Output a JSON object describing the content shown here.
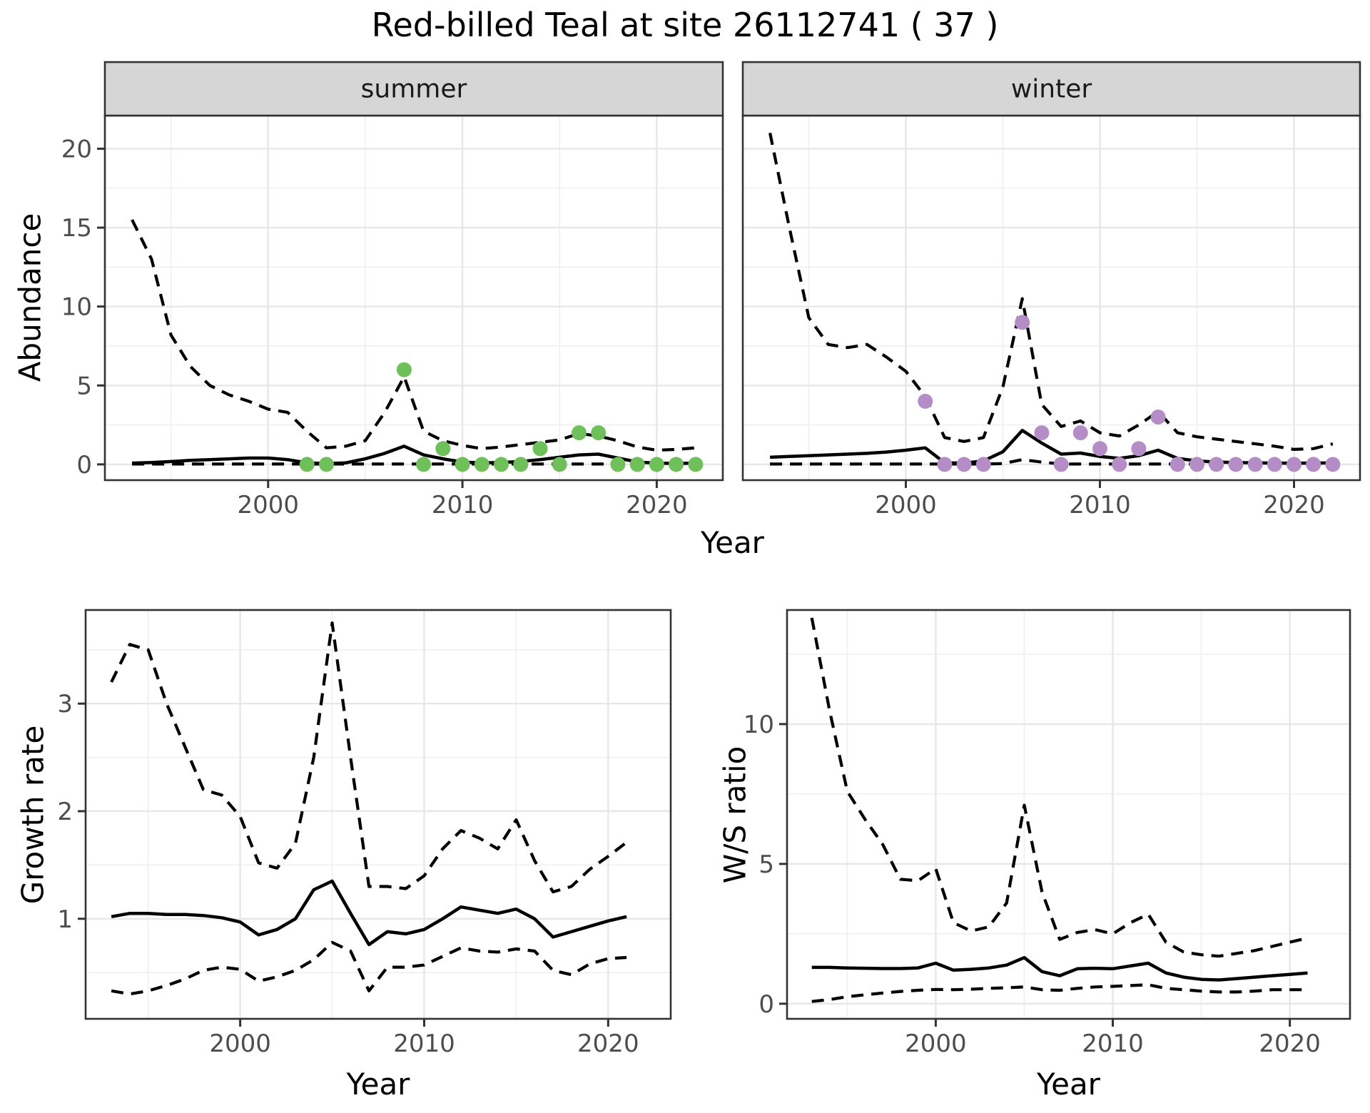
{
  "title": "Red-billed Teal at site 26112741 ( 37 )",
  "shared": {
    "xlabel": "Year",
    "x_domain": [
      1991.6,
      2023.4
    ],
    "x_ticks": [
      2000,
      2010,
      2020
    ],
    "x_minor": [
      1995,
      2005,
      2015
    ]
  },
  "colors": {
    "summer_point": "#6FBF5A",
    "winter_point": "#B48DC6",
    "line": "#000000",
    "grid_major": "#E7E7E7",
    "grid_minor": "#EFEFEF",
    "panel_border": "#333333",
    "strip_bg": "#D6D6D6",
    "strip_text": "#1A1A1A",
    "tick_text": "#4D4D4D",
    "tick_mark": "#333333"
  },
  "chart_data": [
    {
      "id": "summer",
      "type": "line+scatter",
      "facet_label": "summer",
      "ylabel": "Abundance",
      "xlabel": "Year",
      "y_domain": [
        -1.0,
        22.1
      ],
      "y_ticks": [
        0,
        5,
        10,
        15,
        20
      ],
      "y_minor": [
        2.5,
        7.5,
        12.5,
        17.5
      ],
      "show_y_labels": true,
      "x": [
        1993,
        1994,
        1995,
        1996,
        1997,
        1998,
        1999,
        2000,
        2001,
        2002,
        2003,
        2004,
        2005,
        2006,
        2007,
        2008,
        2009,
        2010,
        2011,
        2012,
        2013,
        2014,
        2015,
        2016,
        2017,
        2018,
        2019,
        2020,
        2021,
        2022
      ],
      "series": [
        {
          "name": "mean",
          "style": "solid",
          "values": [
            0.08,
            0.12,
            0.18,
            0.25,
            0.3,
            0.35,
            0.4,
            0.4,
            0.3,
            0.1,
            0.05,
            0.1,
            0.35,
            0.7,
            1.15,
            0.6,
            0.35,
            0.15,
            0.1,
            0.12,
            0.18,
            0.3,
            0.45,
            0.6,
            0.65,
            0.4,
            0.15,
            0.08,
            0.06,
            0.08
          ]
        },
        {
          "name": "upper_ci",
          "style": "dashed",
          "values": [
            15.5,
            13.0,
            8.2,
            6.2,
            5.0,
            4.4,
            4.0,
            3.5,
            3.3,
            2.1,
            1.05,
            1.15,
            1.5,
            3.3,
            5.55,
            2.1,
            1.5,
            1.2,
            1.0,
            1.1,
            1.25,
            1.4,
            1.55,
            1.95,
            1.8,
            1.5,
            1.1,
            0.9,
            0.95,
            1.05
          ]
        },
        {
          "name": "lower_ci",
          "style": "dashed",
          "values": [
            0.02,
            0.02,
            0.02,
            0.02,
            0.02,
            0.02,
            0.02,
            0.02,
            0.02,
            0.02,
            0.02,
            0.02,
            0.02,
            0.02,
            0.02,
            0.02,
            0.02,
            0.02,
            0.02,
            0.02,
            0.02,
            0.02,
            0.02,
            0.02,
            0.02,
            0.02,
            0.02,
            0.02,
            0.02,
            0.02
          ]
        }
      ],
      "points": {
        "color_key": "summer_point",
        "data": [
          [
            2002,
            0
          ],
          [
            2003,
            0
          ],
          [
            2007,
            6
          ],
          [
            2008,
            0
          ],
          [
            2009,
            1
          ],
          [
            2010,
            0
          ],
          [
            2011,
            0
          ],
          [
            2012,
            0
          ],
          [
            2013,
            0
          ],
          [
            2014,
            1
          ],
          [
            2015,
            0
          ],
          [
            2016,
            2
          ],
          [
            2017,
            2
          ],
          [
            2018,
            0
          ],
          [
            2019,
            0
          ],
          [
            2020,
            0
          ],
          [
            2021,
            0
          ],
          [
            2022,
            0
          ]
        ]
      }
    },
    {
      "id": "winter",
      "type": "line+scatter",
      "facet_label": "winter",
      "ylabel": "Abundance",
      "xlabel": "Year",
      "y_domain": [
        -1.0,
        22.1
      ],
      "y_ticks": [
        0,
        5,
        10,
        15,
        20
      ],
      "y_minor": [
        2.5,
        7.5,
        12.5,
        17.5
      ],
      "show_y_labels": false,
      "x": [
        1993,
        1994,
        1995,
        1996,
        1997,
        1998,
        1999,
        2000,
        2001,
        2002,
        2003,
        2004,
        2005,
        2006,
        2007,
        2008,
        2009,
        2010,
        2011,
        2012,
        2013,
        2014,
        2015,
        2016,
        2017,
        2018,
        2019,
        2020,
        2021,
        2022
      ],
      "series": [
        {
          "name": "mean",
          "style": "solid",
          "values": [
            0.45,
            0.5,
            0.55,
            0.6,
            0.65,
            0.7,
            0.78,
            0.9,
            1.05,
            0.1,
            0.08,
            0.22,
            0.8,
            2.15,
            1.35,
            0.65,
            0.72,
            0.5,
            0.38,
            0.55,
            0.9,
            0.38,
            0.22,
            0.15,
            0.12,
            0.1,
            0.08,
            0.08,
            0.08,
            0.1
          ]
        },
        {
          "name": "upper_ci",
          "style": "dashed",
          "values": [
            21.0,
            15.0,
            9.3,
            7.6,
            7.4,
            7.6,
            6.8,
            5.9,
            4.3,
            1.7,
            1.45,
            1.7,
            4.9,
            10.5,
            3.8,
            2.4,
            2.75,
            2.0,
            1.8,
            2.5,
            3.35,
            2.0,
            1.75,
            1.6,
            1.45,
            1.3,
            1.15,
            0.95,
            1.0,
            1.3
          ]
        },
        {
          "name": "lower_ci",
          "style": "dashed",
          "values": [
            0.02,
            0.02,
            0.02,
            0.02,
            0.02,
            0.02,
            0.02,
            0.02,
            0.02,
            0.02,
            0.02,
            0.02,
            0.05,
            0.3,
            0.15,
            0.02,
            0.02,
            0.02,
            0.02,
            0.02,
            0.02,
            0.02,
            0.02,
            0.02,
            0.02,
            0.02,
            0.02,
            0.02,
            0.02,
            0.02
          ]
        }
      ],
      "points": {
        "color_key": "winter_point",
        "data": [
          [
            2001,
            4
          ],
          [
            2002,
            0
          ],
          [
            2003,
            0
          ],
          [
            2004,
            0
          ],
          [
            2006,
            9
          ],
          [
            2007,
            2
          ],
          [
            2008,
            0
          ],
          [
            2009,
            2
          ],
          [
            2010,
            1
          ],
          [
            2011,
            0
          ],
          [
            2012,
            1
          ],
          [
            2013,
            3
          ],
          [
            2014,
            0
          ],
          [
            2015,
            0
          ],
          [
            2016,
            0
          ],
          [
            2017,
            0
          ],
          [
            2018,
            0
          ],
          [
            2019,
            0
          ],
          [
            2020,
            0
          ],
          [
            2021,
            0
          ],
          [
            2022,
            0
          ]
        ]
      }
    },
    {
      "id": "growth_rate",
      "type": "line",
      "facet_label": null,
      "ylabel": "Growth rate",
      "xlabel": "Year",
      "y_domain": [
        0.07,
        3.87
      ],
      "y_ticks": [
        1,
        2,
        3
      ],
      "y_minor": [
        0.5,
        1.5,
        2.5,
        3.5
      ],
      "show_y_labels": true,
      "x": [
        1993,
        1994,
        1995,
        1996,
        1997,
        1998,
        1999,
        2000,
        2001,
        2002,
        2003,
        2004,
        2005,
        2006,
        2007,
        2008,
        2009,
        2010,
        2011,
        2012,
        2013,
        2014,
        2015,
        2016,
        2017,
        2018,
        2019,
        2020,
        2021
      ],
      "series": [
        {
          "name": "mean",
          "style": "solid",
          "values": [
            1.02,
            1.05,
            1.05,
            1.04,
            1.04,
            1.03,
            1.01,
            0.97,
            0.85,
            0.9,
            1.0,
            1.27,
            1.35,
            1.05,
            0.76,
            0.88,
            0.86,
            0.9,
            1.0,
            1.11,
            1.08,
            1.05,
            1.09,
            1.0,
            0.83,
            0.88,
            0.93,
            0.98,
            1.02
          ]
        },
        {
          "name": "upper_ci",
          "style": "dashed",
          "values": [
            3.2,
            3.55,
            3.5,
            3.0,
            2.6,
            2.2,
            2.15,
            1.95,
            1.52,
            1.47,
            1.7,
            2.5,
            3.75,
            2.5,
            1.3,
            1.3,
            1.28,
            1.4,
            1.65,
            1.82,
            1.75,
            1.65,
            1.92,
            1.54,
            1.25,
            1.3,
            1.46,
            1.58,
            1.71
          ]
        },
        {
          "name": "lower_ci",
          "style": "dashed",
          "values": [
            0.33,
            0.3,
            0.33,
            0.38,
            0.44,
            0.52,
            0.55,
            0.53,
            0.42,
            0.46,
            0.52,
            0.62,
            0.78,
            0.7,
            0.33,
            0.55,
            0.55,
            0.57,
            0.65,
            0.73,
            0.7,
            0.69,
            0.72,
            0.7,
            0.52,
            0.48,
            0.58,
            0.63,
            0.64
          ]
        }
      ],
      "points": null
    },
    {
      "id": "ws_ratio",
      "type": "line",
      "facet_label": null,
      "ylabel": "W/S ratio",
      "xlabel": "Year",
      "y_domain": [
        -0.54,
        14.08
      ],
      "y_ticks": [
        0,
        5,
        10
      ],
      "y_minor": [
        2.5,
        7.5,
        12.5
      ],
      "show_y_labels": true,
      "x": [
        1993,
        1994,
        1995,
        1996,
        1997,
        1998,
        1999,
        2000,
        2001,
        2002,
        2003,
        2004,
        2005,
        2006,
        2007,
        2008,
        2009,
        2010,
        2011,
        2012,
        2013,
        2014,
        2015,
        2016,
        2017,
        2018,
        2019,
        2020,
        2021
      ],
      "series": [
        {
          "name": "mean",
          "style": "solid",
          "values": [
            1.3,
            1.3,
            1.28,
            1.27,
            1.26,
            1.26,
            1.28,
            1.45,
            1.2,
            1.23,
            1.28,
            1.38,
            1.65,
            1.15,
            1.0,
            1.25,
            1.27,
            1.25,
            1.35,
            1.45,
            1.1,
            0.95,
            0.87,
            0.85,
            0.9,
            0.95,
            1.0,
            1.05,
            1.1
          ]
        },
        {
          "name": "upper_ci",
          "style": "dashed",
          "values": [
            13.8,
            10.5,
            7.6,
            6.6,
            5.7,
            4.45,
            4.4,
            4.83,
            2.9,
            2.6,
            2.75,
            3.6,
            7.1,
            4.0,
            2.3,
            2.55,
            2.65,
            2.5,
            2.9,
            3.2,
            2.2,
            1.85,
            1.75,
            1.7,
            1.8,
            1.9,
            2.05,
            2.2,
            2.35
          ]
        },
        {
          "name": "lower_ci",
          "style": "dashed",
          "values": [
            0.08,
            0.15,
            0.25,
            0.32,
            0.38,
            0.44,
            0.48,
            0.51,
            0.5,
            0.52,
            0.55,
            0.57,
            0.6,
            0.5,
            0.48,
            0.55,
            0.6,
            0.62,
            0.65,
            0.68,
            0.55,
            0.5,
            0.45,
            0.42,
            0.42,
            0.45,
            0.5,
            0.5,
            0.5
          ]
        }
      ],
      "points": null
    }
  ]
}
